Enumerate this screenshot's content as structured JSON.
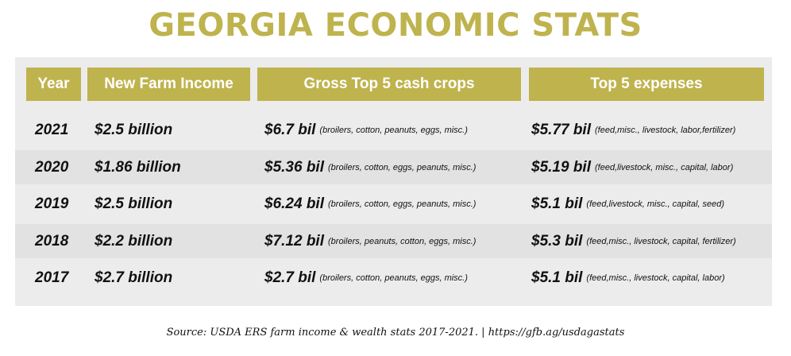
{
  "title": "GEORGIA ECONOMIC STATS",
  "headers": [
    "Year",
    "New Farm Income",
    "Gross Top 5 cash crops",
    "Top 5 expenses"
  ],
  "rows": [
    {
      "year": "2021",
      "income": "$2.5 billion",
      "crops_total": "$6.7 bil",
      "crops_detail": "(broilers, cotton, peanuts, eggs, misc.)",
      "expenses_total": "$5.77 bil",
      "expenses_detail": "(feed,misc., livestock, labor,fertilizer)"
    },
    {
      "year": "2020",
      "income": "$1.86 billion",
      "crops_total": "$5.36 bil",
      "crops_detail": "(broilers, cotton, eggs, peanuts, misc.)",
      "expenses_total": "$5.19 bil",
      "expenses_detail": "(feed,livestock, misc., capital, labor)"
    },
    {
      "year": "2019",
      "income": "$2.5 billion",
      "crops_total": "$6.24 bil",
      "crops_detail": "(broilers, cotton, eggs, peanuts, misc.)",
      "expenses_total": "$5.1 bil",
      "expenses_detail": "(feed,livestock, misc., capital, seed)"
    },
    {
      "year": "2018",
      "income": "$2.2 billion",
      "crops_total": "$7.12 bil",
      "crops_detail": "(broilers, peanuts, cotton, eggs, misc.)",
      "expenses_total": "$5.3 bil",
      "expenses_detail": "(feed,misc., livestock, capital, fertilizer)"
    },
    {
      "year": "2017",
      "income": "$2.7 billion",
      "crops_total": "$2.7 bil",
      "crops_detail": "(broilers, cotton, peanuts, eggs, misc.)",
      "expenses_total": "$5.1 bil",
      "expenses_detail": "(feed,misc., livestock, capital, labor)"
    }
  ],
  "source": "Source: USDA ERS farm income & wealth stats 2017-2021. | https://gfb.ag/usdagastats",
  "colors": {
    "accent": "#bfb34e",
    "panel": "#ececec",
    "row_alt": "#e2e2e2"
  }
}
